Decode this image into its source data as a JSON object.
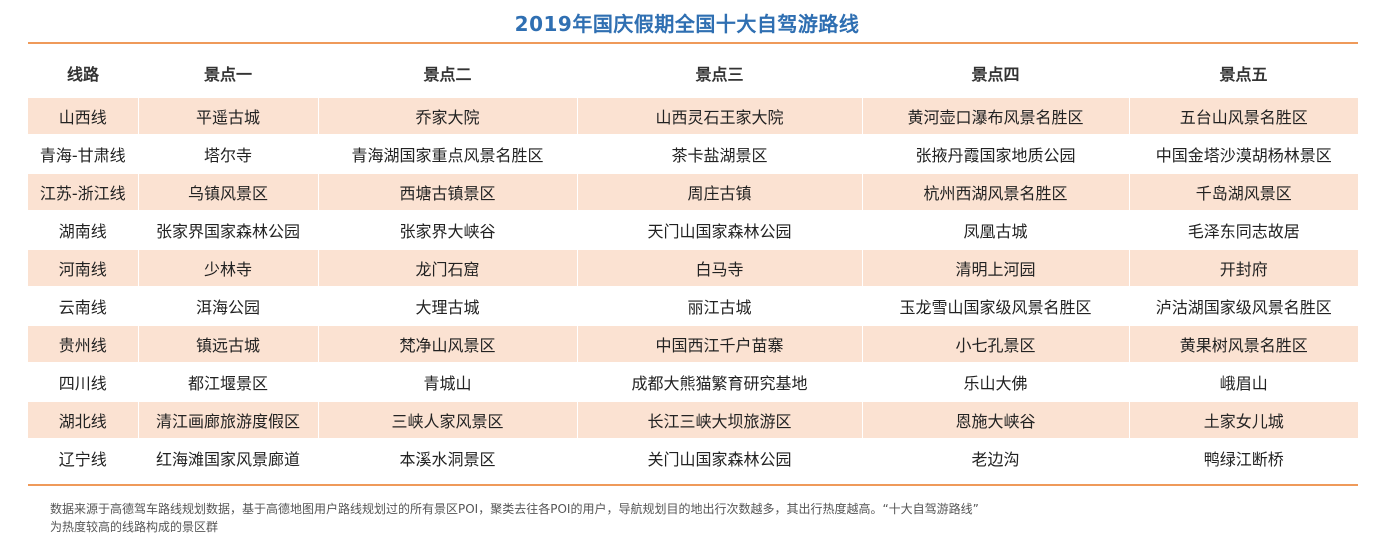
{
  "title": "2019年国庆假期全国十大自驾游路线",
  "table": {
    "headers": [
      "线路",
      "景点一",
      "景点二",
      "景点三",
      "景点四",
      "景点五"
    ],
    "rows": [
      [
        "山西线",
        "平遥古城",
        "乔家大院",
        "山西灵石王家大院",
        "黄河壶口瀑布风景名胜区",
        "五台山风景名胜区"
      ],
      [
        "青海-甘肃线",
        "塔尔寺",
        "青海湖国家重点风景名胜区",
        "茶卡盐湖景区",
        "张掖丹霞国家地质公园",
        "中国金塔沙漠胡杨林景区"
      ],
      [
        "江苏-浙江线",
        "乌镇风景区",
        "西塘古镇景区",
        "周庄古镇",
        "杭州西湖风景名胜区",
        "千岛湖风景区"
      ],
      [
        "湖南线",
        "张家界国家森林公园",
        "张家界大峡谷",
        "天门山国家森林公园",
        "凤凰古城",
        "毛泽东同志故居"
      ],
      [
        "河南线",
        "少林寺",
        "龙门石窟",
        "白马寺",
        "清明上河园",
        "开封府"
      ],
      [
        "云南线",
        "洱海公园",
        "大理古城",
        "丽江古城",
        "玉龙雪山国家级风景名胜区",
        "泸沽湖国家级风景名胜区"
      ],
      [
        "贵州线",
        "镇远古城",
        "梵净山风景区",
        "中国西江千户苗寨",
        "小七孔景区",
        "黄果树风景名胜区"
      ],
      [
        "四川线",
        "都江堰景区",
        "青城山",
        "成都大熊猫繁育研究基地",
        "乐山大佛",
        "峨眉山"
      ],
      [
        "湖北线",
        "清江画廊旅游度假区",
        "三峡人家风景区",
        "长江三峡大坝旅游区",
        "恩施大峡谷",
        "土家女儿城"
      ],
      [
        "辽宁线",
        "红海滩国家风景廊道",
        "本溪水洞景区",
        "关门山国家森林公园",
        "老边沟",
        "鸭绿江断桥"
      ]
    ]
  },
  "note": {
    "line1": "数据来源于高德驾车路线规划数据，基于高德地图用户路线规划过的所有景区POI，聚类去往各POI的用户，导航规划目的地出行次数越多，其出行热度越高。“十大自驾游路线”",
    "line2": "为热度较高的线路构成的景区群"
  },
  "colors": {
    "title": "#2f6fb2",
    "rule": "#ef9a5a",
    "row_shade": "#fbe2d2"
  }
}
